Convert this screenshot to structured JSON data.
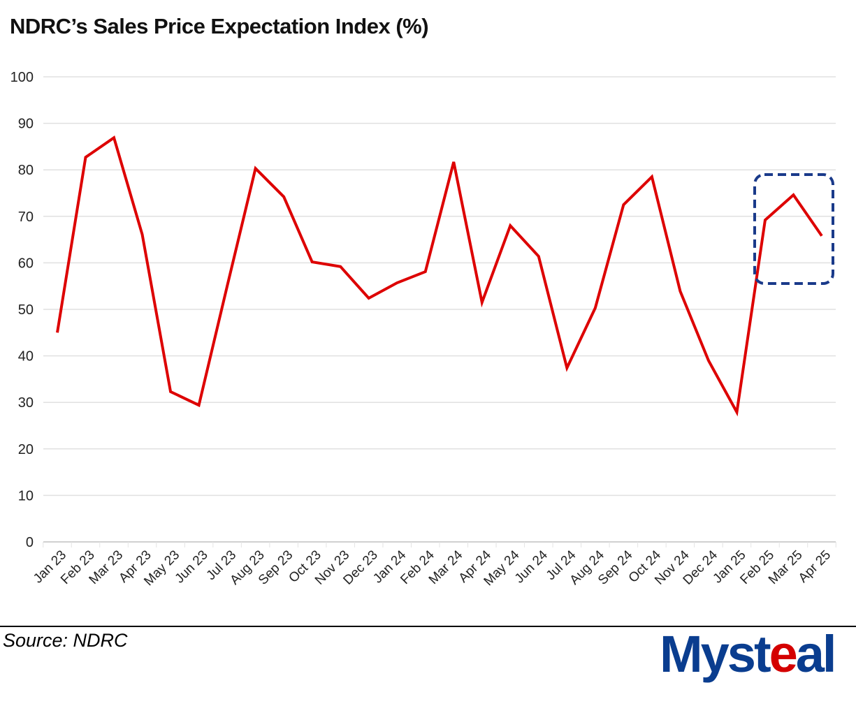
{
  "title": "NDRC’s Sales Price Expectation Index (%)",
  "source": "Source:  NDRC",
  "logo": {
    "text_main": "Myst",
    "text_accent": "e",
    "text_end": "al"
  },
  "colors": {
    "line": "#dd0000",
    "highlight_box": "#1a3a8a",
    "grid": "#e0e0e0"
  },
  "chart_data": {
    "type": "line",
    "title": "NDRC’s Sales Price Expectation Index (%)",
    "xlabel": "",
    "ylabel": "",
    "ylim": [
      0,
      100
    ],
    "yticks": [
      0,
      10,
      20,
      30,
      40,
      50,
      60,
      70,
      80,
      90,
      100
    ],
    "grid": true,
    "categories": [
      "Jan 23",
      "Feb 23",
      "Mar 23",
      "Apr 23",
      "May 23",
      "Jun 23",
      "Jul 23",
      "Aug 23",
      "Sep 23",
      "Oct 23",
      "Nov 23",
      "Dec 23",
      "Jan 24",
      "Feb 24",
      "Mar 24",
      "Apr 24",
      "May 24",
      "Jun 24",
      "Jul 24",
      "Aug 24",
      "Sep 24",
      "Oct 24",
      "Nov 24",
      "Dec 24",
      "Jan 25",
      "Feb 25",
      "Mar 25",
      "Apr 25"
    ],
    "series": [
      {
        "name": "Sales Price Expectation Index",
        "values": [
          45.0,
          82.7,
          86.9,
          66.1,
          32.3,
          29.4,
          55.0,
          80.3,
          74.2,
          60.2,
          59.2,
          52.4,
          55.7,
          58.1,
          81.7,
          51.5,
          68.0,
          61.4,
          37.4,
          50.3,
          72.5,
          78.5,
          53.9,
          39.0,
          27.9,
          69.2,
          74.6,
          65.8
        ]
      }
    ],
    "annotations": [
      {
        "type": "dashed-box",
        "covers": [
          "Feb 25",
          "Mar 25",
          "Apr 25"
        ]
      }
    ]
  }
}
